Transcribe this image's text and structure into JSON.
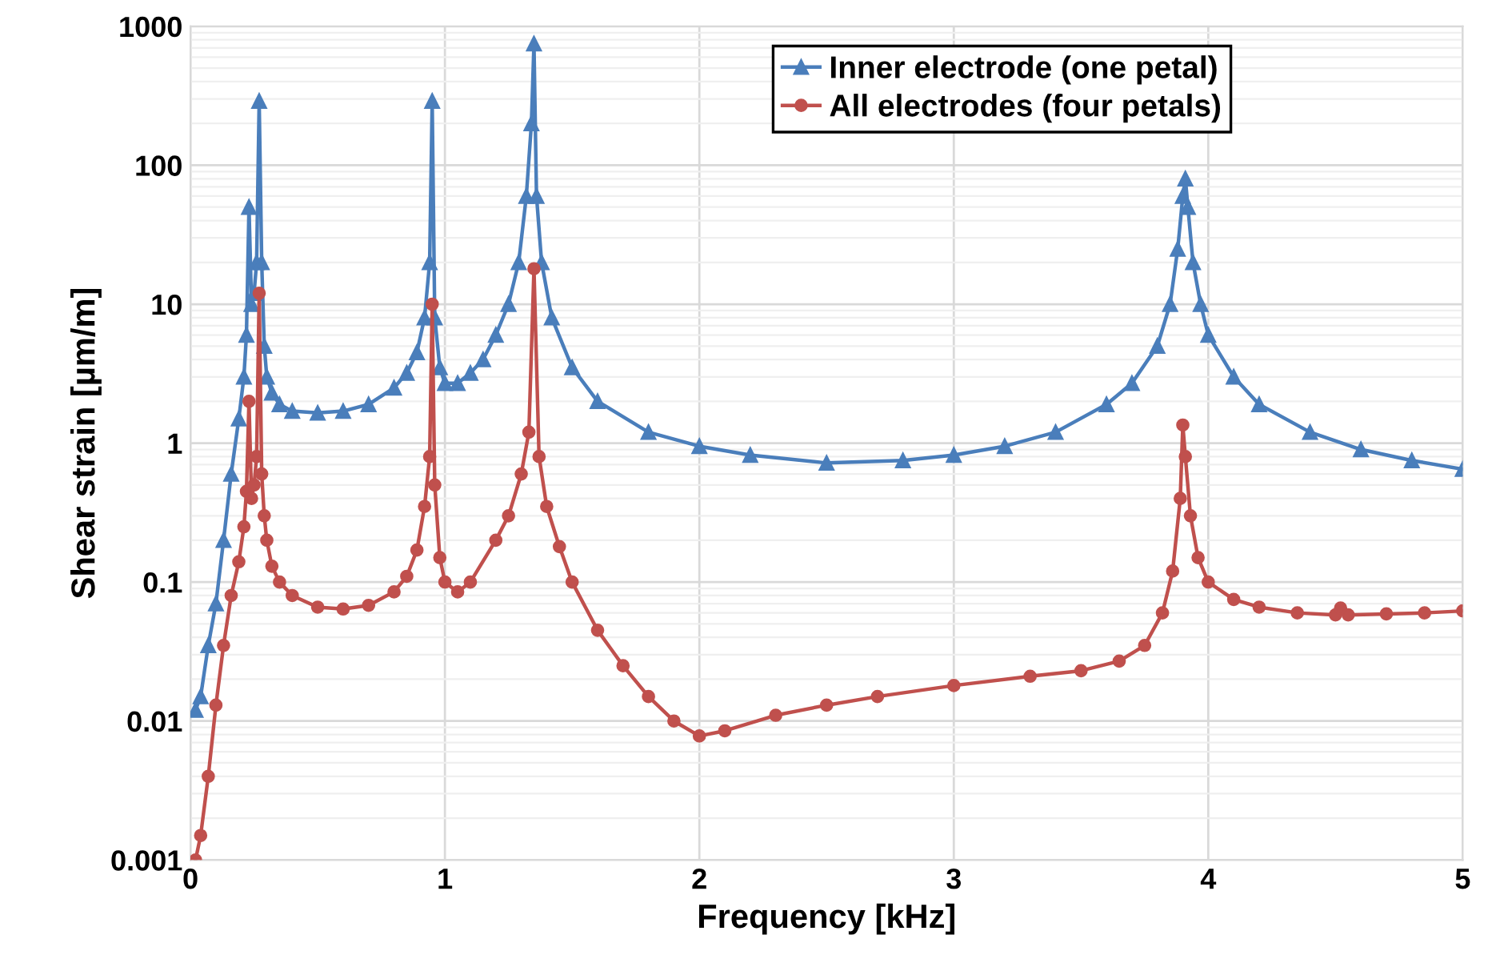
{
  "chart_data": {
    "type": "line",
    "xlabel": "Frequency [kHz]",
    "ylabel": "Shear strain [µm/m]",
    "log": "y",
    "xlim": [
      0,
      5
    ],
    "ylim": [
      0.001,
      1000
    ],
    "xticks": [
      0,
      1,
      2,
      3,
      4,
      5
    ],
    "yticks": [
      0.001,
      0.01,
      0.1,
      1,
      10,
      100,
      1000
    ],
    "grid": true,
    "legend": "top right",
    "line_style": "solid",
    "series": [
      {
        "name": "Inner electrode (one petal)",
        "color": "#4a7ebb",
        "marker": "triangle",
        "x": [
          0.02,
          0.04,
          0.07,
          0.1,
          0.13,
          0.16,
          0.19,
          0.21,
          0.22,
          0.23,
          0.24,
          0.25,
          0.26,
          0.27,
          0.28,
          0.29,
          0.3,
          0.32,
          0.35,
          0.4,
          0.5,
          0.6,
          0.7,
          0.8,
          0.85,
          0.89,
          0.92,
          0.94,
          0.95,
          0.96,
          0.98,
          1.0,
          1.05,
          1.1,
          1.15,
          1.2,
          1.25,
          1.29,
          1.32,
          1.34,
          1.35,
          1.36,
          1.38,
          1.42,
          1.5,
          1.6,
          1.8,
          2.0,
          2.2,
          2.5,
          2.8,
          3.0,
          3.2,
          3.4,
          3.6,
          3.7,
          3.8,
          3.85,
          3.88,
          3.9,
          3.91,
          3.92,
          3.94,
          3.97,
          4.0,
          4.1,
          4.2,
          4.4,
          4.6,
          4.8,
          5.0
        ],
        "values": [
          0.012,
          0.015,
          0.035,
          0.07,
          0.2,
          0.6,
          1.5,
          3,
          6,
          50,
          10,
          12,
          20,
          290,
          20,
          5,
          3,
          2.3,
          1.9,
          1.7,
          1.65,
          1.7,
          1.9,
          2.5,
          3.2,
          4.5,
          8,
          20,
          290,
          8,
          3.5,
          2.7,
          2.7,
          3.2,
          4,
          6,
          10,
          20,
          60,
          200,
          750,
          60,
          20,
          8,
          3.5,
          2,
          1.2,
          0.95,
          0.82,
          0.72,
          0.75,
          0.82,
          0.95,
          1.2,
          1.9,
          2.7,
          5,
          10,
          25,
          60,
          80,
          50,
          20,
          10,
          6,
          3,
          1.9,
          1.2,
          0.9,
          0.75,
          0.65
        ]
      },
      {
        "name": "All electrodes (four petals)",
        "color": "#c0504d",
        "marker": "circle",
        "x": [
          0.02,
          0.04,
          0.07,
          0.1,
          0.13,
          0.16,
          0.19,
          0.21,
          0.22,
          0.23,
          0.24,
          0.25,
          0.26,
          0.27,
          0.28,
          0.29,
          0.3,
          0.32,
          0.35,
          0.4,
          0.5,
          0.6,
          0.7,
          0.8,
          0.85,
          0.89,
          0.92,
          0.94,
          0.95,
          0.96,
          0.98,
          1.0,
          1.05,
          1.1,
          1.2,
          1.25,
          1.3,
          1.33,
          1.35,
          1.37,
          1.4,
          1.45,
          1.5,
          1.6,
          1.7,
          1.8,
          1.9,
          2.0,
          2.1,
          2.3,
          2.5,
          2.7,
          3.0,
          3.3,
          3.5,
          3.65,
          3.75,
          3.82,
          3.86,
          3.89,
          3.9,
          3.91,
          3.93,
          3.96,
          4.0,
          4.1,
          4.2,
          4.35,
          4.5,
          4.52,
          4.55,
          4.7,
          4.85,
          5.0
        ],
        "values": [
          0.001,
          0.0015,
          0.004,
          0.013,
          0.035,
          0.08,
          0.14,
          0.25,
          0.45,
          2,
          0.4,
          0.5,
          0.8,
          12,
          0.6,
          0.3,
          0.2,
          0.13,
          0.1,
          0.08,
          0.066,
          0.064,
          0.068,
          0.085,
          0.11,
          0.17,
          0.35,
          0.8,
          10,
          0.5,
          0.15,
          0.1,
          0.085,
          0.1,
          0.2,
          0.3,
          0.6,
          1.2,
          18,
          0.8,
          0.35,
          0.18,
          0.1,
          0.045,
          0.025,
          0.015,
          0.01,
          0.0078,
          0.0085,
          0.011,
          0.013,
          0.015,
          0.018,
          0.021,
          0.023,
          0.027,
          0.035,
          0.06,
          0.12,
          0.4,
          1.35,
          0.8,
          0.3,
          0.15,
          0.1,
          0.075,
          0.066,
          0.06,
          0.058,
          0.065,
          0.058,
          0.059,
          0.06,
          0.062
        ]
      }
    ]
  }
}
